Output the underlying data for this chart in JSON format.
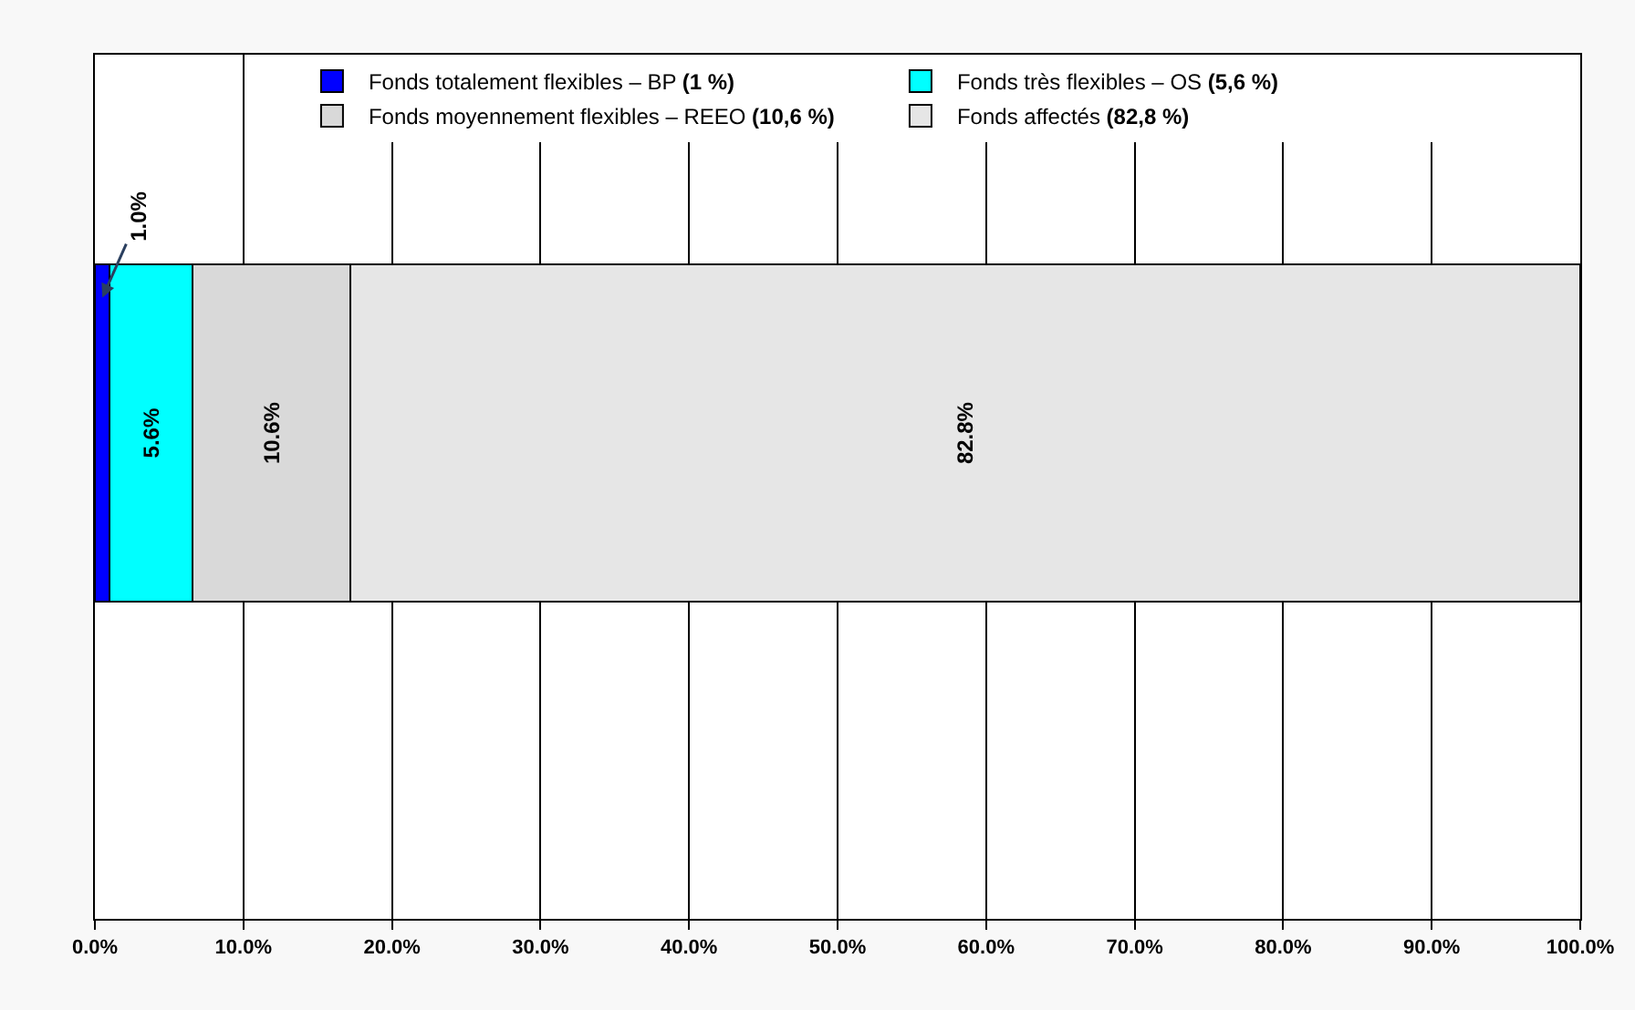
{
  "chart_data": {
    "type": "bar",
    "orientation": "horizontal",
    "stacked": true,
    "categories": [
      null
    ],
    "series": [
      {
        "name": "Fonds totalement flexibles – BP (1 %)",
        "color": "#0000ff",
        "values": [
          1.0
        ],
        "value_labels": [
          "1.0%"
        ]
      },
      {
        "name": "Fonds très flexibles – OS (5,6 %)",
        "color": "#00ffff",
        "values": [
          5.6
        ],
        "value_labels": [
          "5.6%"
        ]
      },
      {
        "name": "Fonds moyennement flexibles – REEO (10,6 %)",
        "color": "#d9d9d9",
        "values": [
          10.6
        ],
        "value_labels": [
          "10.6%"
        ]
      },
      {
        "name": "Fonds affectés (82,8 %)",
        "color": "#e6e6e6",
        "values": [
          82.8
        ],
        "value_labels": [
          "82.8%"
        ]
      }
    ],
    "xlim": [
      0,
      100
    ],
    "xticks": [
      {
        "value": 0,
        "label": "0.0%"
      },
      {
        "value": 10,
        "label": "10.0%"
      },
      {
        "value": 20,
        "label": "20.0%"
      },
      {
        "value": 30,
        "label": "30.0%"
      },
      {
        "value": 40,
        "label": "40.0%"
      },
      {
        "value": 50,
        "label": "50.0%"
      },
      {
        "value": 60,
        "label": "60.0%"
      },
      {
        "value": 70,
        "label": "70.0%"
      },
      {
        "value": 80,
        "label": "80.0%"
      },
      {
        "value": 90,
        "label": "90.0%"
      },
      {
        "value": 100,
        "label": "100.0%"
      }
    ],
    "grid": "x",
    "legend": "top"
  }
}
